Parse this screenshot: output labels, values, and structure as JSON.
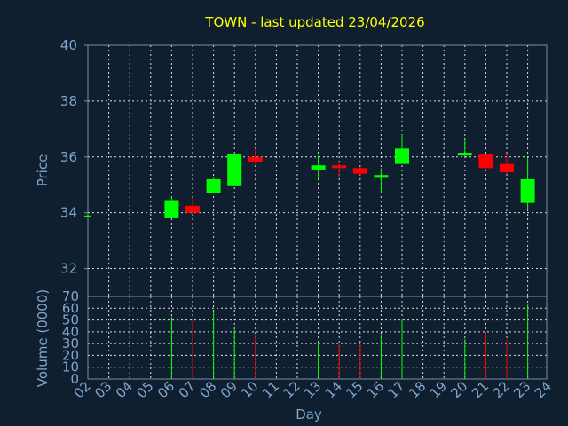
{
  "chart_data": {
    "type": "candlestick",
    "title": "TOWN - last updated 23/04/2026",
    "xlabel": "Day",
    "colors": {
      "background": "#0f1f30",
      "up": "#00ff00",
      "down": "#ff0000",
      "title": "#ffff00",
      "axis_text": "#7fa6cc"
    },
    "x_tick_labels": [
      "02",
      "03",
      "04",
      "05",
      "06",
      "07",
      "08",
      "09",
      "10",
      "11",
      "12",
      "13",
      "14",
      "15",
      "16",
      "17",
      "18",
      "19",
      "20",
      "21",
      "22",
      "23",
      "24"
    ],
    "price_panel": {
      "ylabel": "Price",
      "ylim": [
        31.0,
        40.0
      ],
      "yticks": [
        32,
        34,
        36,
        38,
        40
      ],
      "ytick_labels": [
        "32",
        "34",
        "36",
        "38",
        "40"
      ],
      "grid": true
    },
    "volume_panel": {
      "ylabel": "Volume (0000)",
      "ylim": [
        0,
        70
      ],
      "yticks": [
        0,
        10,
        20,
        30,
        40,
        50,
        60,
        70
      ],
      "ytick_labels": [
        "0",
        "10",
        "20",
        "30",
        "40",
        "50",
        "60",
        "70"
      ],
      "grid": true
    },
    "candles": [
      {
        "day": "02",
        "open": 33.9,
        "high": 33.95,
        "low": 33.88,
        "close": 33.9,
        "volume": 0
      },
      {
        "day": "06",
        "open": 33.8,
        "high": 34.6,
        "low": 33.8,
        "close": 34.45,
        "volume": 53
      },
      {
        "day": "07",
        "open": 34.25,
        "high": 34.5,
        "low": 33.95,
        "close": 34.0,
        "volume": 50
      },
      {
        "day": "08",
        "open": 34.7,
        "high": 35.25,
        "low": 34.7,
        "close": 35.2,
        "volume": 57
      },
      {
        "day": "09",
        "open": 34.95,
        "high": 36.15,
        "low": 34.95,
        "close": 36.1,
        "volume": 42
      },
      {
        "day": "10",
        "open": 36.0,
        "high": 36.3,
        "low": 35.75,
        "close": 35.8,
        "volume": 38
      },
      {
        "day": "13",
        "open": 35.55,
        "high": 36.05,
        "low": 35.2,
        "close": 35.7,
        "volume": 31
      },
      {
        "day": "14",
        "open": 35.7,
        "high": 35.8,
        "low": 35.25,
        "close": 35.6,
        "volume": 29
      },
      {
        "day": "15",
        "open": 35.6,
        "high": 35.65,
        "low": 35.35,
        "close": 35.4,
        "volume": 29
      },
      {
        "day": "16",
        "open": 35.25,
        "high": 35.6,
        "low": 34.7,
        "close": 35.35,
        "volume": 38
      },
      {
        "day": "17",
        "open": 35.75,
        "high": 36.8,
        "low": 35.75,
        "close": 36.3,
        "volume": 51
      },
      {
        "day": "20",
        "open": 36.05,
        "high": 36.6,
        "low": 36.0,
        "close": 36.15,
        "volume": 34
      },
      {
        "day": "21",
        "open": 36.1,
        "high": 36.1,
        "low": 35.6,
        "close": 35.6,
        "volume": 40
      },
      {
        "day": "22",
        "open": 35.75,
        "high": 36.1,
        "low": 35.4,
        "close": 35.45,
        "volume": 33
      },
      {
        "day": "23",
        "open": 34.35,
        "high": 36.0,
        "low": 34.1,
        "close": 35.2,
        "volume": 63
      }
    ]
  }
}
